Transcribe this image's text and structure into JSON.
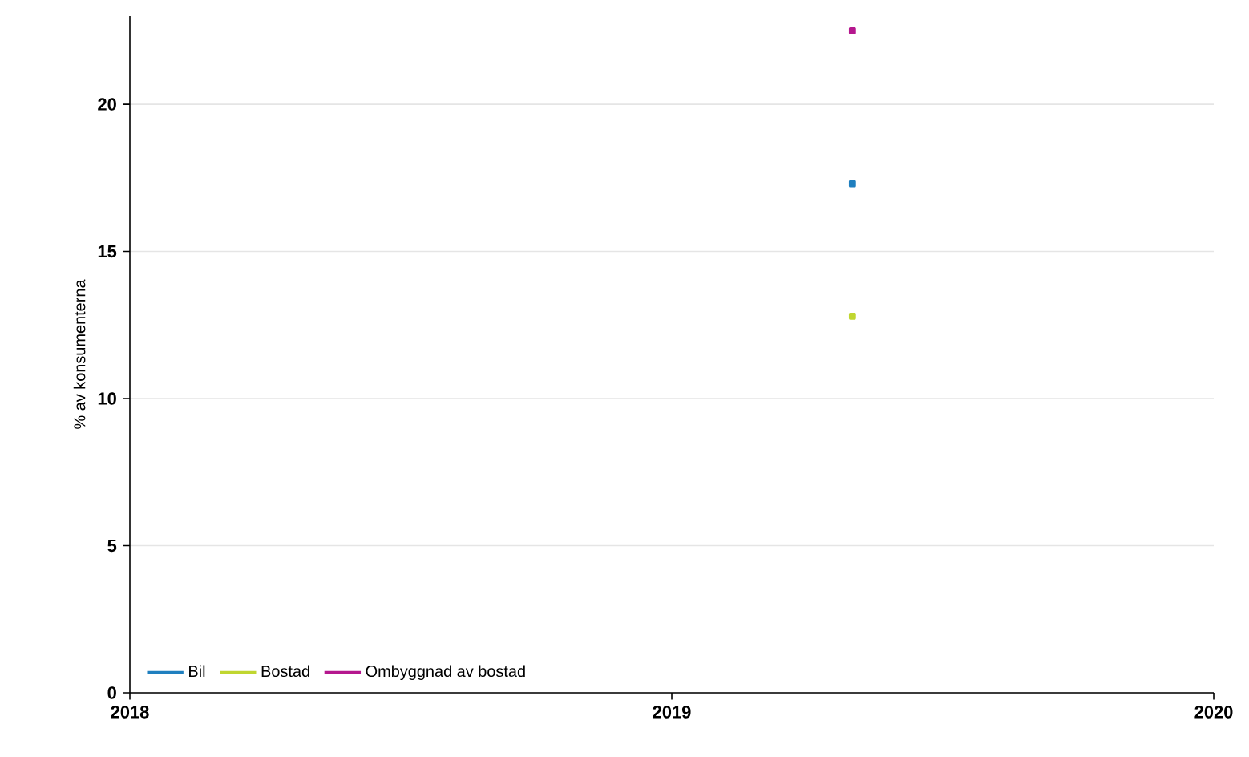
{
  "chart_data": {
    "type": "line",
    "ylabel": "% av konsumenterna",
    "x": [
      "2019-05"
    ],
    "series": [
      {
        "name": "Bil",
        "color": "#1f7fbf",
        "values": [
          17.3
        ]
      },
      {
        "name": "Bostad",
        "color": "#c0d630",
        "values": [
          12.8
        ]
      },
      {
        "name": "Ombyggnad av bostad",
        "color": "#b5178e",
        "values": [
          22.5
        ]
      }
    ],
    "xlim": [
      "2018",
      "2020"
    ],
    "xticks": [
      "2018",
      "2019",
      "2020"
    ],
    "ylim": [
      0,
      23
    ],
    "yticks": [
      0,
      5,
      10,
      15,
      20
    ],
    "grid": "y",
    "legend": "bottom left",
    "marker": "square",
    "line_style": "solid"
  }
}
